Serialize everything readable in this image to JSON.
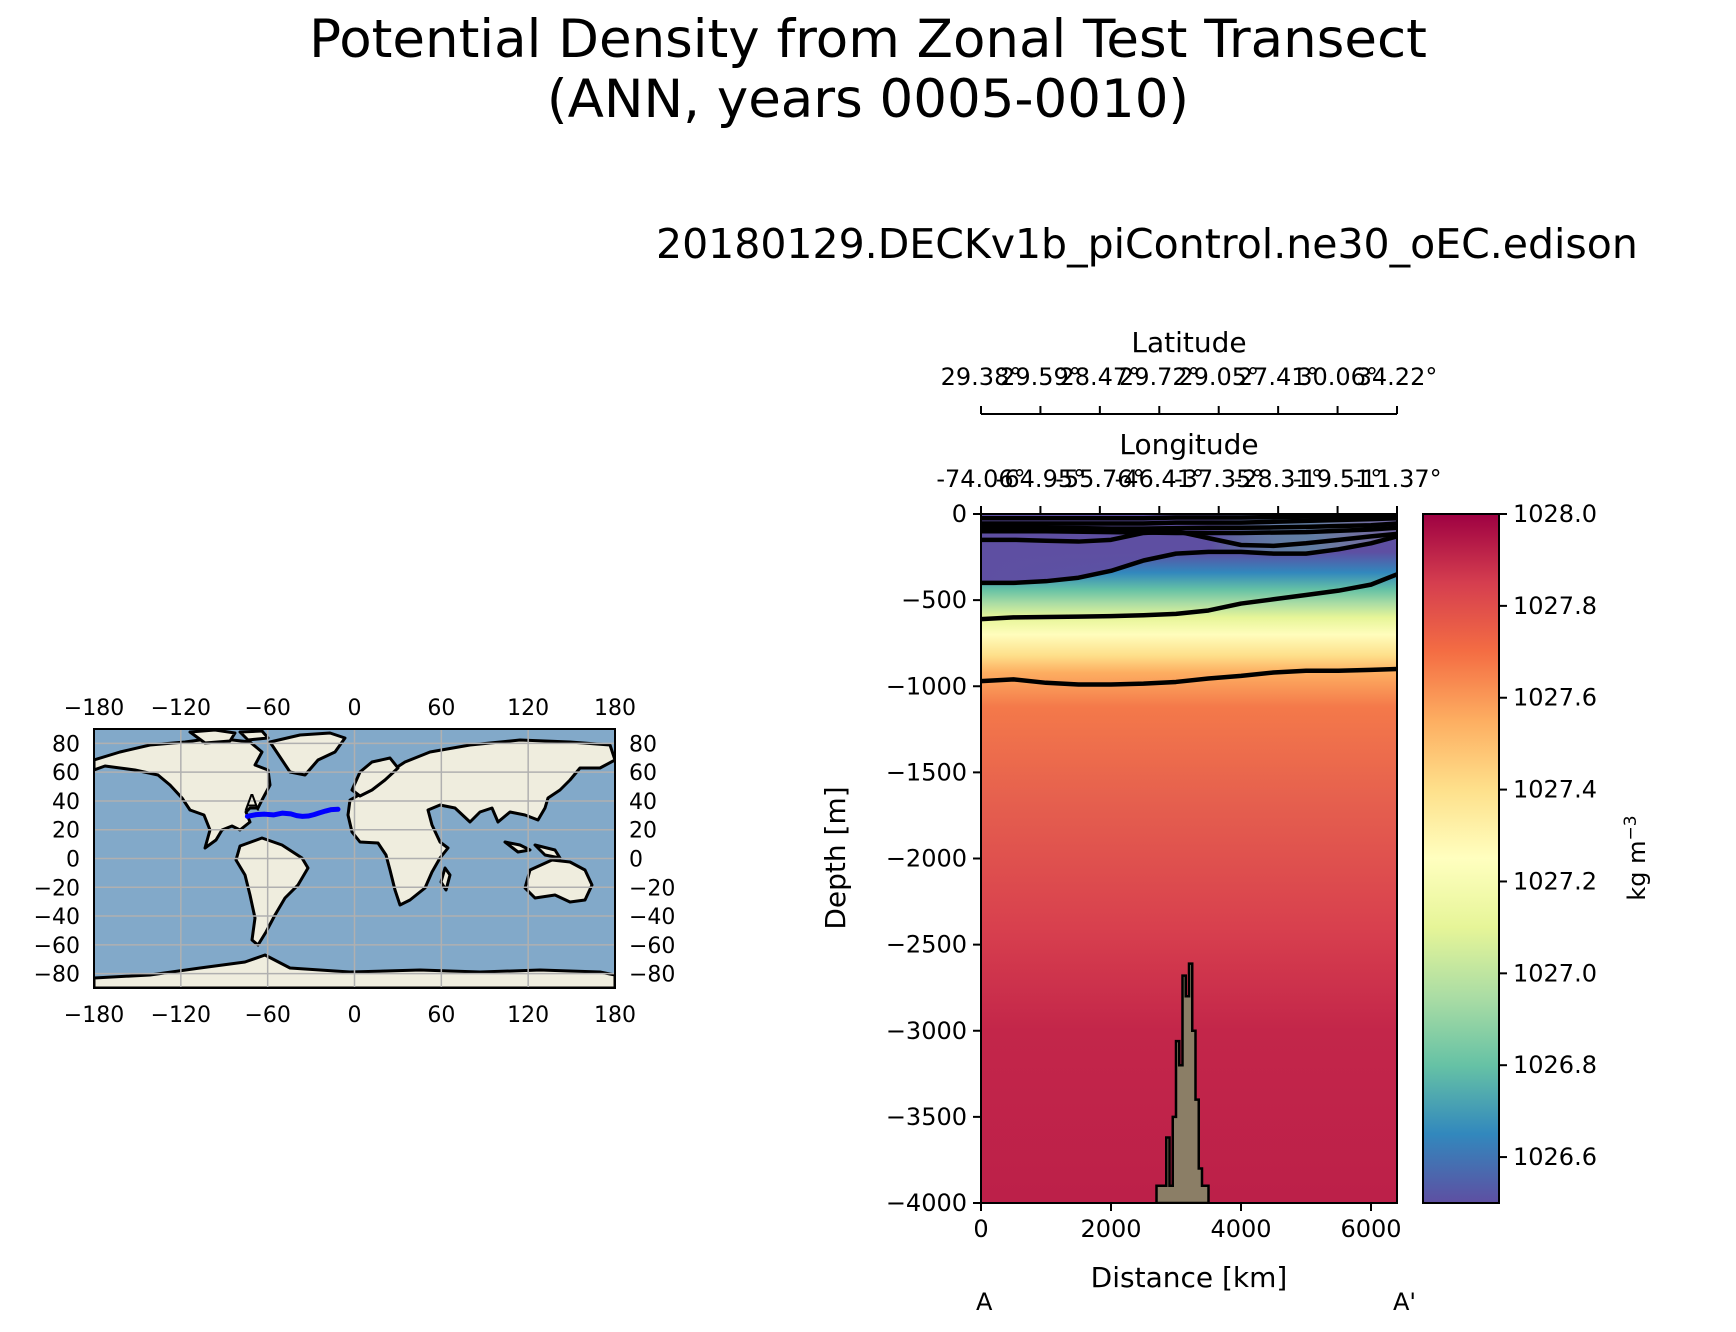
{
  "figure": {
    "title_line1": "Potential Density from Zonal Test Transect",
    "title_line2": "(ANN, years 0005-0010)",
    "run_name": "20180129.DECKv1b_piControl.ne30_oEC.edison"
  },
  "inset_map": {
    "lon_ticks": [
      "−180",
      "−120",
      "−60",
      "0",
      "60",
      "120",
      "180"
    ],
    "lon_values": [
      -180,
      -120,
      -60,
      0,
      60,
      120,
      180
    ],
    "lat_ticks_left": [
      "80",
      "60",
      "40",
      "20",
      "0",
      "−20",
      "−40",
      "−60",
      "−80"
    ],
    "lat_ticks_right": [
      "80",
      "60",
      "40",
      "20",
      "0",
      "−20",
      "−40",
      "−60",
      "−80"
    ],
    "lat_values": [
      80,
      60,
      40,
      20,
      0,
      -20,
      -40,
      -60,
      -80
    ],
    "transect_start_label": "A",
    "transect_lonlat": [
      [
        -74,
        29.3
      ],
      [
        -68,
        30.5
      ],
      [
        -62,
        30.8
      ],
      [
        -56,
        30.3
      ],
      [
        -50,
        31.5
      ],
      [
        -44,
        31
      ],
      [
        -40,
        29.8
      ],
      [
        -36,
        29.3
      ],
      [
        -32,
        29.5
      ],
      [
        -28,
        30.5
      ],
      [
        -24,
        31.8
      ],
      [
        -20,
        33
      ],
      [
        -16,
        34
      ],
      [
        -11.4,
        34.2
      ]
    ],
    "colors": {
      "ocean": "#82a9c9",
      "land": "#efedde",
      "transect": "#0000ff",
      "grid": "#b0b0b0"
    }
  },
  "section": {
    "top_axis_latitude": {
      "label": "Latitude",
      "ticks": [
        "29.38°",
        "29.59°",
        "28.47°",
        "29.72°",
        "29.05°",
        "27.41°",
        "30.06°",
        "34.22°"
      ]
    },
    "top_axis_longitude": {
      "label": "Longitude",
      "ticks": [
        "-74.06°",
        "-64.95°",
        "-55.76°",
        "-46.41°",
        "-37.35°",
        "-28.31°",
        "-19.51°",
        "-11.37°"
      ]
    },
    "ylabel": "Depth [m]",
    "xlabel": "Distance [km]",
    "endpoint_left": "A",
    "endpoint_right": "A'",
    "colorbar": {
      "unit": "kg m",
      "unit_exp": "−3",
      "ticks": [
        "1028.0",
        "1027.8",
        "1027.6",
        "1027.4",
        "1027.2",
        "1027.0",
        "1026.8",
        "1026.6"
      ],
      "tick_values": [
        1028.0,
        1027.8,
        1027.6,
        1027.4,
        1027.2,
        1027.0,
        1026.8,
        1026.6
      ],
      "range": [
        1026.5,
        1028.0
      ],
      "colormap": "Spectral_r"
    },
    "colors": {
      "bathymetry": "#8b7e66"
    }
  },
  "chart_data": {
    "type": "heatmap",
    "xlim": [
      0,
      6400
    ],
    "ylim": [
      -4000,
      0
    ],
    "x_ticks": [
      0,
      2000,
      4000,
      6000
    ],
    "y_ticks": [
      0,
      -500,
      -1000,
      -1500,
      -2000,
      -2500,
      -3000,
      -3500,
      -4000
    ],
    "contours": [
      {
        "x": [
          0,
          500,
          1000,
          1500,
          2000,
          2500,
          3000,
          3500,
          4000,
          4500,
          5000,
          5500,
          6000,
          6400
        ],
        "depth": [
          -25,
          -25,
          -25,
          -25,
          -25,
          -25,
          -20,
          -20,
          -20,
          -18,
          -15,
          -12,
          -10,
          -5
        ]
      },
      {
        "x": [
          0,
          500,
          1000,
          1500,
          2000,
          2500,
          3000,
          3500,
          4000,
          4500,
          5000,
          5500,
          6000,
          6400
        ],
        "depth": [
          -55,
          -55,
          -55,
          -55,
          -55,
          -55,
          -50,
          -50,
          -50,
          -45,
          -40,
          -35,
          -30,
          -25
        ]
      },
      {
        "x": [
          0,
          500,
          1000,
          1500,
          2000,
          2500,
          3000,
          3500,
          4000,
          4500,
          5000,
          5500,
          6000,
          6400
        ],
        "depth": [
          -80,
          -80,
          -80,
          -82,
          -85,
          -85,
          -82,
          -80,
          -80,
          -78,
          -75,
          -70,
          -65,
          -55
        ]
      },
      {
        "x": [
          0,
          1000,
          2000,
          3000,
          4000,
          5000,
          6000,
          6400
        ],
        "depth": [
          -100,
          -100,
          -105,
          -110,
          -110,
          -105,
          -90,
          -80
        ]
      },
      {
        "x": [
          0,
          500,
          1000,
          1500,
          2000,
          2500,
          3000,
          3500,
          4000,
          4500,
          5000,
          5500,
          6000,
          6400
        ],
        "depth": [
          -150,
          -150,
          -155,
          -160,
          -150,
          -110,
          -100,
          -140,
          -180,
          -185,
          -170,
          -150,
          -130,
          -115
        ]
      },
      {
        "x": [
          0,
          500,
          1000,
          1500,
          2000,
          2500,
          3000,
          3500,
          4000,
          4500,
          5000,
          5500,
          6000,
          6400
        ],
        "depth": [
          -400,
          -400,
          -390,
          -370,
          -330,
          -270,
          -230,
          -220,
          -220,
          -230,
          -230,
          -205,
          -170,
          -130
        ]
      },
      {
        "x": [
          0,
          500,
          1000,
          1500,
          2000,
          2500,
          3000,
          3500,
          4000,
          4500,
          5000,
          5500,
          6000,
          6400
        ],
        "depth": [
          -610,
          -600,
          -598,
          -596,
          -593,
          -588,
          -580,
          -560,
          -520,
          -495,
          -470,
          -445,
          -410,
          -350
        ]
      },
      {
        "x": [
          0,
          500,
          1000,
          1500,
          2000,
          2500,
          3000,
          3500,
          4000,
          4500,
          5000,
          5500,
          6000,
          6400
        ],
        "depth": [
          -970,
          -960,
          -980,
          -990,
          -990,
          -985,
          -975,
          -955,
          -940,
          -920,
          -910,
          -910,
          -905,
          -900
        ]
      }
    ],
    "bathymetry": {
      "x": [
        2700,
        2700,
        2850,
        2850,
        2900,
        2900,
        2950,
        2950,
        3000,
        3000,
        3050,
        3050,
        3100,
        3100,
        3150,
        3150,
        3200,
        3200,
        3250,
        3250,
        3300,
        3300,
        3350,
        3350,
        3400,
        3400,
        3500,
        3500
      ],
      "depth": [
        -4000,
        -3900,
        -3900,
        -3620,
        -3620,
        -3900,
        -3900,
        -3500,
        -3500,
        -3060,
        -3060,
        -3200,
        -3200,
        -2680,
        -2680,
        -2800,
        -2800,
        -2610,
        -2610,
        -3000,
        -3000,
        -3400,
        -3400,
        -3800,
        -3800,
        -3900,
        -3900,
        -4000
      ]
    }
  }
}
